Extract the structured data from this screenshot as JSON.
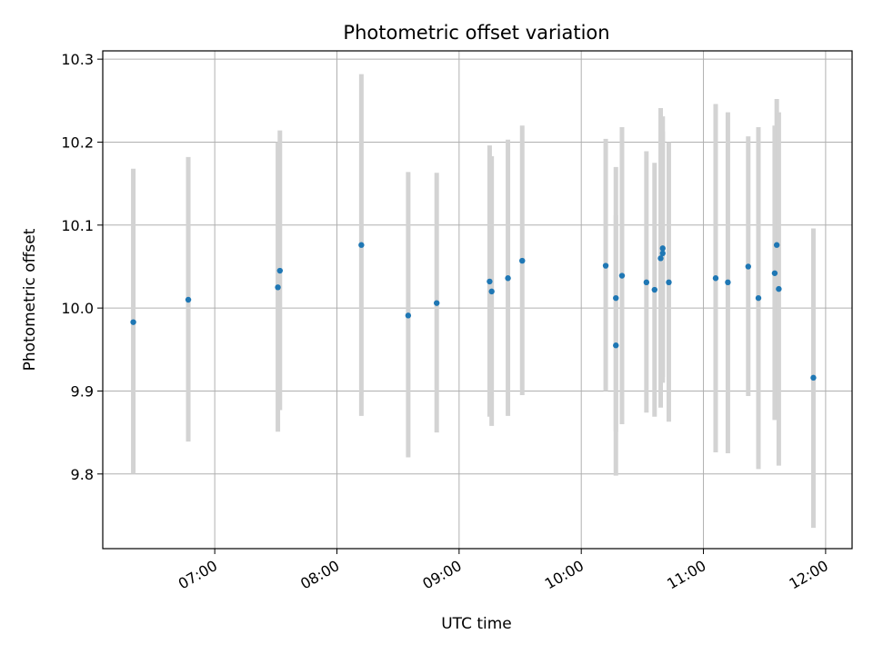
{
  "chart_data": {
    "type": "scatter",
    "title": "Photometric offset variation",
    "xlabel": "UTC time",
    "ylabel": "Photometric offset",
    "x_axis_kind": "time",
    "xlim": [
      "06:05",
      "12:13"
    ],
    "ylim": [
      9.71,
      10.31
    ],
    "grid": true,
    "x_ticks": [
      "07:00",
      "08:00",
      "09:00",
      "10:00",
      "11:00",
      "12:00"
    ],
    "y_ticks": [
      "9.8",
      "9.9",
      "10.0",
      "10.1",
      "10.2",
      "10.3"
    ],
    "marker_color": "#1f77b4",
    "errorbar_color": "#d3d3d3",
    "points": [
      {
        "x": "06:20",
        "y": 9.983,
        "ylo": 9.8,
        "yhi": 10.168
      },
      {
        "x": "06:47",
        "y": 10.01,
        "ylo": 9.839,
        "yhi": 10.182
      },
      {
        "x": "07:31",
        "y": 10.025,
        "ylo": 9.851,
        "yhi": 10.2
      },
      {
        "x": "07:32",
        "y": 10.045,
        "ylo": 9.877,
        "yhi": 10.214
      },
      {
        "x": "08:12",
        "y": 10.076,
        "ylo": 9.87,
        "yhi": 10.282
      },
      {
        "x": "08:35",
        "y": 9.991,
        "ylo": 9.82,
        "yhi": 10.164
      },
      {
        "x": "08:49",
        "y": 10.006,
        "ylo": 9.85,
        "yhi": 10.163
      },
      {
        "x": "09:15",
        "y": 10.032,
        "ylo": 9.869,
        "yhi": 10.196
      },
      {
        "x": "09:16",
        "y": 10.02,
        "ylo": 9.858,
        "yhi": 10.183
      },
      {
        "x": "09:24",
        "y": 10.036,
        "ylo": 9.87,
        "yhi": 10.203
      },
      {
        "x": "09:31",
        "y": 10.057,
        "ylo": 9.895,
        "yhi": 10.22
      },
      {
        "x": "10:12",
        "y": 10.051,
        "ylo": 9.9,
        "yhi": 10.204
      },
      {
        "x": "10:17",
        "y": 9.955,
        "ylo": 9.798,
        "yhi": 10.112
      },
      {
        "x": "10:17",
        "y": 10.012,
        "ylo": 9.851,
        "yhi": 10.17
      },
      {
        "x": "10:20",
        "y": 10.039,
        "ylo": 9.86,
        "yhi": 10.218
      },
      {
        "x": "10:32",
        "y": 10.031,
        "ylo": 9.874,
        "yhi": 10.189
      },
      {
        "x": "10:36",
        "y": 10.022,
        "ylo": 9.869,
        "yhi": 10.175
      },
      {
        "x": "10:39",
        "y": 10.06,
        "ylo": 9.88,
        "yhi": 10.241
      },
      {
        "x": "10:40",
        "y": 10.072,
        "ylo": 9.91,
        "yhi": 10.231
      },
      {
        "x": "10:40",
        "y": 10.066,
        "ylo": 9.917,
        "yhi": 10.213
      },
      {
        "x": "10:43",
        "y": 10.031,
        "ylo": 9.863,
        "yhi": 10.2
      },
      {
        "x": "11:06",
        "y": 10.036,
        "ylo": 9.826,
        "yhi": 10.246
      },
      {
        "x": "11:12",
        "y": 10.031,
        "ylo": 9.825,
        "yhi": 10.236
      },
      {
        "x": "11:22",
        "y": 10.05,
        "ylo": 9.894,
        "yhi": 10.207
      },
      {
        "x": "11:27",
        "y": 10.012,
        "ylo": 9.806,
        "yhi": 10.218
      },
      {
        "x": "11:35",
        "y": 10.042,
        "ylo": 9.865,
        "yhi": 10.22
      },
      {
        "x": "11:36",
        "y": 10.076,
        "ylo": 9.9,
        "yhi": 10.252
      },
      {
        "x": "11:37",
        "y": 10.023,
        "ylo": 9.81,
        "yhi": 10.236
      },
      {
        "x": "11:54",
        "y": 9.916,
        "ylo": 9.735,
        "yhi": 10.096
      }
    ]
  }
}
